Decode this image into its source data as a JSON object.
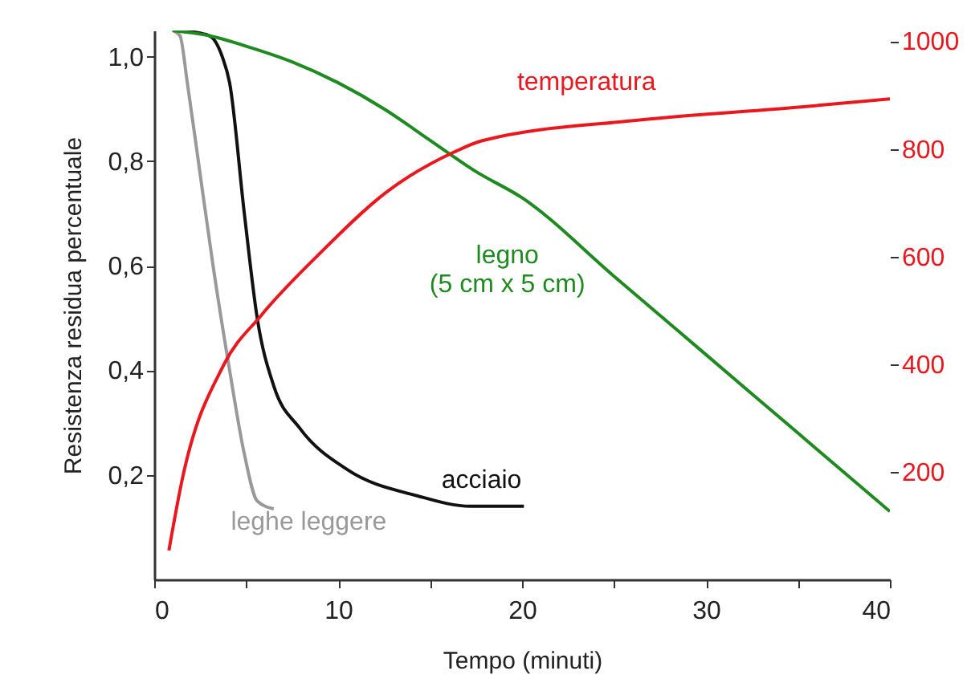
{
  "chart_data": {
    "type": "line",
    "xlabel": "Tempo (minuti)",
    "ylabel": "Resistenza residua percentuale",
    "xlim": [
      0,
      40
    ],
    "xticks": [
      0,
      {
        "value": 5,
        "label": null
      },
      10,
      {
        "value": 15,
        "label": null
      },
      20,
      {
        "value": 25,
        "label": null
      },
      30,
      {
        "value": 35,
        "label": null
      },
      40
    ],
    "ylim": [
      0,
      1.05
    ],
    "yticks": [
      {
        "value": 0.2,
        "label": "0,2"
      },
      {
        "value": 0.4,
        "label": "0,4"
      },
      {
        "value": 0.6,
        "label": "0,6"
      },
      {
        "value": 0.8,
        "label": "0,8"
      },
      {
        "value": 1.0,
        "label": "1,0"
      }
    ],
    "y2lim": [
      0,
      1020
    ],
    "y2ticks": [
      200,
      400,
      600,
      800,
      1000
    ],
    "grid": false,
    "series": [
      {
        "name": "leghe leggere",
        "color": "#999999",
        "x": [
          1,
          1.4,
          1.8,
          2.4,
          3.2,
          4.1,
          4.9,
          5.6,
          6.5
        ],
        "values": [
          1.05,
          1.04,
          0.95,
          0.8,
          0.6,
          0.4,
          0.24,
          0.15,
          0.135
        ]
      },
      {
        "name": "acciaio",
        "color": "#111111",
        "x": [
          1.5,
          3,
          3.7,
          4.1,
          4.9,
          5.6,
          6.5,
          7.9,
          10.5,
          14.3,
          17.2,
          20.1
        ],
        "values": [
          1.05,
          1.04,
          1.0,
          0.95,
          0.7,
          0.5,
          0.37,
          0.29,
          0.21,
          0.16,
          0.14,
          0.14
        ]
      },
      {
        "name": "legno\n(5 cm x 5 cm)",
        "color": "#1f8a1f",
        "x": [
          1,
          3,
          5,
          7.5,
          10,
          12.5,
          15,
          17.5,
          20,
          25,
          30,
          35,
          40
        ],
        "values": [
          1.05,
          1.04,
          1.02,
          0.99,
          0.95,
          0.9,
          0.84,
          0.78,
          0.73,
          0.58,
          0.43,
          0.28,
          0.13
        ]
      },
      {
        "name": "temperatura",
        "color": "#e8181e",
        "axis": "y2",
        "x": [
          0.8,
          1.5,
          3.8,
          5.8,
          9.1,
          12.6,
          16.3,
          17.8,
          26.5,
          35.2,
          40
        ],
        "values": [
          54,
          182,
          400,
          490,
          609,
          719,
          794,
          815,
          854,
          878,
          893
        ]
      }
    ]
  }
}
